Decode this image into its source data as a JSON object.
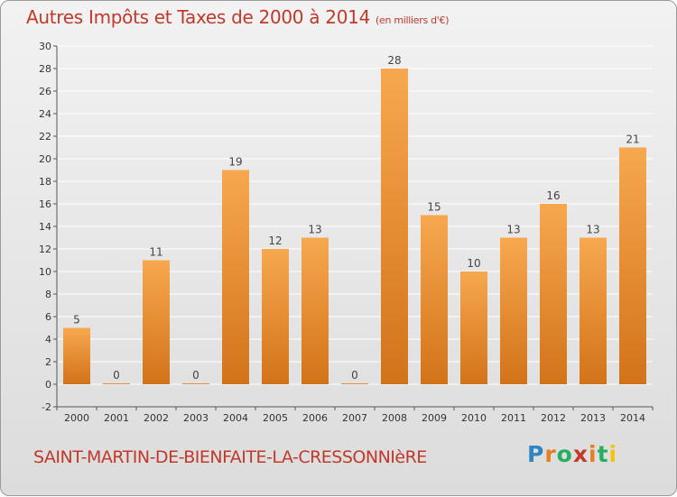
{
  "title": "Autres Impôts et Taxes de 2000 à 2014",
  "unit_note": "(en milliers d'€)",
  "commune": "SAINT-MARTIN-DE-BIENFAITE-LA-CRESSONNIèRE",
  "brand": {
    "name": "Proxiti",
    "letters": [
      "P",
      "r",
      "o",
      "x",
      "i",
      "t",
      "i"
    ],
    "logo_icon": "proxiti-logo-icon"
  },
  "colors": {
    "title": "#c0392b",
    "bar_top": "#f7a84e",
    "bar_bottom": "#d2731a",
    "grid": "#ffffff",
    "axis": "#555555"
  },
  "chart_data": {
    "type": "bar",
    "categories": [
      "2000",
      "2001",
      "2002",
      "2003",
      "2004",
      "2005",
      "2006",
      "2007",
      "2008",
      "2009",
      "2010",
      "2011",
      "2012",
      "2013",
      "2014"
    ],
    "values": [
      5,
      0,
      11,
      0,
      19,
      12,
      13,
      0,
      28,
      15,
      10,
      13,
      16,
      13,
      21
    ],
    "data_labels": [
      "5",
      "0",
      "11",
      "0",
      "19",
      "12",
      "13",
      "0",
      "28",
      "15",
      "10",
      "13",
      "16",
      "13",
      "21"
    ],
    "ylim": [
      -2,
      30
    ],
    "yticks": [
      -2,
      0,
      2,
      4,
      6,
      8,
      10,
      12,
      14,
      16,
      18,
      20,
      22,
      24,
      26,
      28,
      30
    ],
    "ytick_labels": [
      "-2",
      "0",
      "2",
      "4",
      "6",
      "8",
      "10",
      "12",
      "14",
      "16",
      "18",
      "20",
      "22",
      "24",
      "26",
      "28",
      "30"
    ],
    "grid": true,
    "legend": "none"
  }
}
